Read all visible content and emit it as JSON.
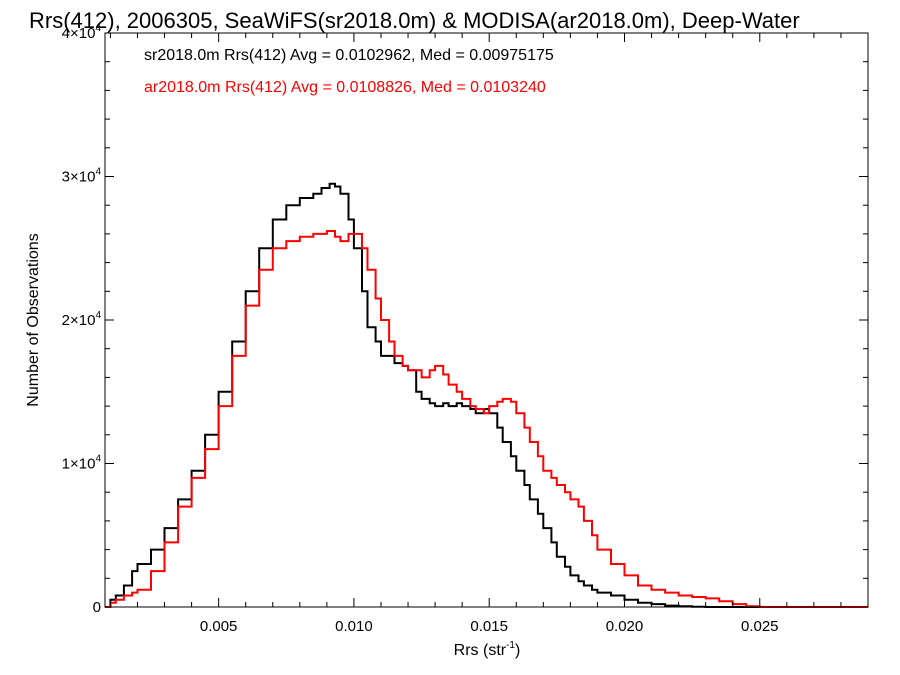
{
  "chart_data": {
    "type": "line",
    "title": "Rrs(412), 2006305, SeaWiFS(sr2018.0m) & MODISA(ar2018.0m), Deep-Water",
    "xlabel_main": "Rrs (str",
    "xlabel_sup": "-1",
    "xlabel_end": ")",
    "ylabel": "Number of Observations",
    "xlim": [
      0.0008,
      0.029
    ],
    "ylim": [
      0,
      40000
    ],
    "x_ticks": [
      {
        "value": 0.005,
        "label": "0.005"
      },
      {
        "value": 0.01,
        "label": "0.010"
      },
      {
        "value": 0.015,
        "label": "0.015"
      },
      {
        "value": 0.02,
        "label": "0.020"
      },
      {
        "value": 0.025,
        "label": "0.025"
      }
    ],
    "y_ticks": [
      {
        "value": 0,
        "label": "0",
        "sup": ""
      },
      {
        "value": 10000,
        "label": "1×10",
        "sup": "4"
      },
      {
        "value": 20000,
        "label": "2×10",
        "sup": "4"
      },
      {
        "value": 30000,
        "label": "3×10",
        "sup": "4"
      },
      {
        "value": 40000,
        "label": "4×10",
        "sup": "4"
      }
    ],
    "legend_placement": "top-left",
    "grid": false,
    "series": [
      {
        "name": "sr2018.0m Rrs(412) Avg = 0.0102962, Med = 0.00975175",
        "color": "#000000",
        "x": [
          0.0008,
          0.001,
          0.0012,
          0.0015,
          0.0018,
          0.002,
          0.0025,
          0.003,
          0.0035,
          0.004,
          0.0045,
          0.005,
          0.0055,
          0.006,
          0.0065,
          0.007,
          0.0075,
          0.008,
          0.0085,
          0.0088,
          0.0091,
          0.0093,
          0.0095,
          0.0098,
          0.01,
          0.0103,
          0.0105,
          0.0108,
          0.011,
          0.0113,
          0.0115,
          0.0118,
          0.012,
          0.0123,
          0.0125,
          0.0128,
          0.013,
          0.0133,
          0.0135,
          0.0138,
          0.014,
          0.0143,
          0.0145,
          0.0148,
          0.015,
          0.0153,
          0.0155,
          0.0158,
          0.016,
          0.0163,
          0.0165,
          0.0168,
          0.017,
          0.0173,
          0.0175,
          0.0178,
          0.018,
          0.0183,
          0.0185,
          0.0188,
          0.019,
          0.0195,
          0.02,
          0.0205,
          0.021,
          0.0215,
          0.022,
          0.0225,
          0.023,
          0.0235,
          0.024,
          0.0245,
          0.025,
          0.0255,
          0.026,
          0.029
        ],
        "y": [
          0,
          500,
          800,
          1500,
          2500,
          3000,
          4000,
          5500,
          7500,
          9500,
          12000,
          15000,
          18500,
          22000,
          25000,
          27000,
          28000,
          28500,
          28800,
          29200,
          29500,
          29300,
          28800,
          27000,
          25000,
          22000,
          19500,
          18500,
          17500,
          17500,
          17000,
          16800,
          16500,
          15000,
          14500,
          14200,
          14000,
          14200,
          14000,
          14200,
          14000,
          13800,
          13500,
          13800,
          13500,
          12500,
          11500,
          10500,
          9500,
          8500,
          7500,
          6500,
          5500,
          4500,
          3500,
          2800,
          2200,
          1800,
          1500,
          1200,
          1000,
          800,
          500,
          300,
          200,
          100,
          50,
          20,
          0,
          0,
          0,
          0,
          0,
          0,
          0,
          0
        ]
      },
      {
        "name": "ar2018.0m Rrs(412) Avg = 0.0108826, Med = 0.0103240",
        "color": "#ff0000",
        "x": [
          0.0008,
          0.001,
          0.0012,
          0.0015,
          0.0018,
          0.002,
          0.0025,
          0.003,
          0.0035,
          0.004,
          0.0045,
          0.005,
          0.0055,
          0.006,
          0.0065,
          0.007,
          0.0075,
          0.008,
          0.0085,
          0.009,
          0.0093,
          0.0095,
          0.0098,
          0.01,
          0.0103,
          0.0105,
          0.0108,
          0.011,
          0.0113,
          0.0115,
          0.0118,
          0.012,
          0.0123,
          0.0125,
          0.0128,
          0.013,
          0.0133,
          0.0135,
          0.0138,
          0.014,
          0.0143,
          0.0145,
          0.0148,
          0.015,
          0.0153,
          0.0155,
          0.0158,
          0.016,
          0.0163,
          0.0165,
          0.0168,
          0.017,
          0.0173,
          0.0175,
          0.0178,
          0.018,
          0.0183,
          0.0185,
          0.0188,
          0.019,
          0.0195,
          0.02,
          0.0205,
          0.021,
          0.0215,
          0.022,
          0.0225,
          0.023,
          0.0235,
          0.024,
          0.0245,
          0.025,
          0.0255,
          0.026,
          0.0265,
          0.029
        ],
        "y": [
          0,
          300,
          500,
          800,
          1000,
          1200,
          2500,
          4500,
          7000,
          9000,
          11000,
          14000,
          17500,
          21000,
          23500,
          25000,
          25500,
          25800,
          26000,
          26200,
          25800,
          25500,
          26000,
          26000,
          25000,
          23500,
          21500,
          20000,
          18500,
          17500,
          16800,
          16500,
          16500,
          16000,
          16500,
          16800,
          16200,
          15500,
          15000,
          14500,
          14000,
          13800,
          13500,
          14000,
          14300,
          14500,
          14300,
          13500,
          12500,
          11500,
          10500,
          9500,
          9000,
          8500,
          8000,
          7500,
          7000,
          6000,
          5000,
          4000,
          3000,
          2200,
          1500,
          1200,
          1000,
          800,
          700,
          600,
          400,
          200,
          50,
          0,
          0,
          0,
          0,
          0
        ]
      }
    ]
  }
}
